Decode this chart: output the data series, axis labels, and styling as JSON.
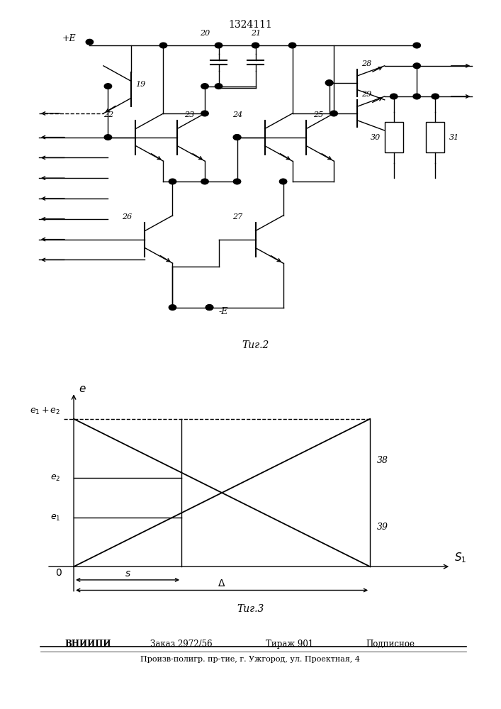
{
  "title": "1324111",
  "fig2_label": "Τиг.2",
  "fig3_label": "Τиг.3",
  "footer_line1_bold": "ВНИИПИ",
  "footer_zakas": "Заказ 2972/56",
  "footer_tiraz": "Тираж 901",
  "footer_podp": "Подписное",
  "footer_line2": "Произв-полигр. пр-тие, г. Ужгород, ул. Проектная, 4",
  "bg_color": "#ffffff",
  "lc": "#000000"
}
